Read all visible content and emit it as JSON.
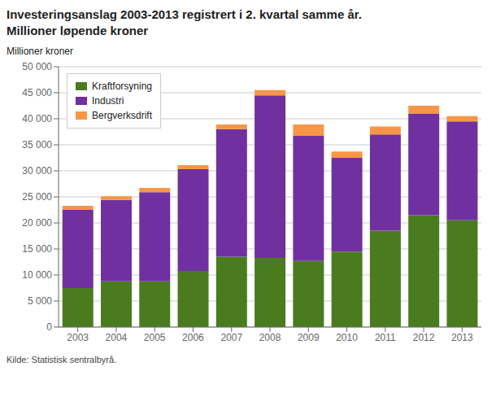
{
  "chart_data": {
    "type": "bar",
    "stacked": true,
    "title": "Investeringsanslag 2003-2013 registrert i 2. kvartal samme år.",
    "subtitle": "Millioner løpende kroner",
    "y_label": "Millioner kroner",
    "source": "Kilde: Statistisk sentralbyrå.",
    "categories": [
      "2003",
      "2004",
      "2005",
      "2006",
      "2007",
      "2008",
      "2009",
      "2010",
      "2011",
      "2012",
      "2013"
    ],
    "series": [
      {
        "name": "Kraftforsyning",
        "color": "#4a7c1f",
        "values": [
          7500,
          8800,
          8800,
          10800,
          13500,
          13300,
          12700,
          14500,
          18500,
          21500,
          20500
        ]
      },
      {
        "name": "Industri",
        "color": "#7030a0",
        "values": [
          15000,
          15600,
          17100,
          19500,
          24500,
          31200,
          24000,
          18000,
          18500,
          19500,
          19000
        ]
      },
      {
        "name": "Bergverksdrift",
        "color": "#f79646",
        "values": [
          800,
          700,
          800,
          800,
          900,
          1000,
          2200,
          1200,
          1500,
          1500,
          1000
        ]
      }
    ],
    "ylim": [
      0,
      50000
    ],
    "yticks": [
      0,
      {
        "value": 5000,
        "label": "5 000"
      },
      {
        "value": 10000,
        "label": "10 000"
      },
      {
        "value": 15000,
        "label": "15 000"
      },
      {
        "value": 20000,
        "label": "20 000"
      },
      {
        "value": 25000,
        "label": "25 000"
      },
      {
        "value": 30000,
        "label": "30 000"
      },
      {
        "value": 35000,
        "label": "35 000"
      },
      {
        "value": 40000,
        "label": "40 000"
      },
      {
        "value": 45000,
        "label": "45 000"
      },
      {
        "value": 50000,
        "label": "50 000"
      }
    ],
    "grid": true,
    "legend": "upper left"
  }
}
